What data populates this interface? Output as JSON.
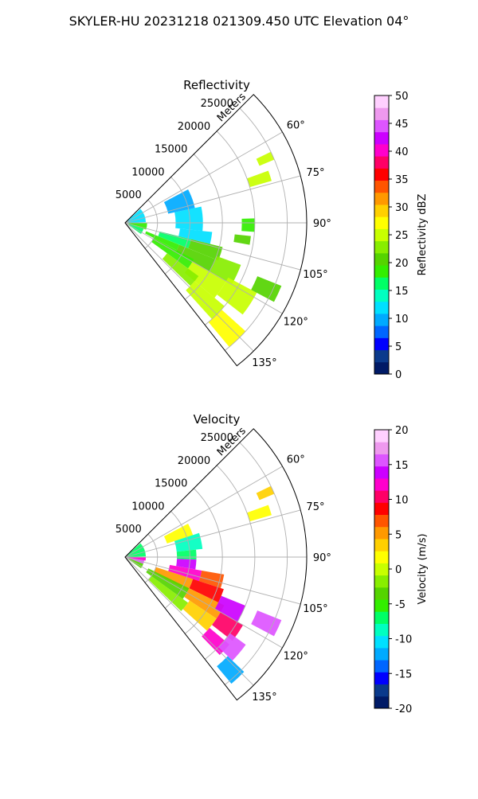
{
  "figure": {
    "title": "SKYLER-HU  20231218  021309.450 UTC Elevation 04°"
  },
  "panels": [
    {
      "title": "Reflectivity",
      "colorbar_label": "Reflectivity dBZ",
      "colorbar_ticks": [
        "0",
        "5",
        "10",
        "15",
        "20",
        "25",
        "30",
        "35",
        "40",
        "45",
        "50"
      ],
      "range_label": "Meters",
      "range_tick_labels": [
        "5000",
        "10000",
        "15000",
        "20000",
        "25000"
      ],
      "angle_tick_labels": [
        "60°",
        "75°",
        "90°",
        "105°",
        "120°",
        "135°"
      ]
    },
    {
      "title": "Velocity",
      "colorbar_label": "Velocity (m/s)",
      "colorbar_ticks": [
        "-20",
        "-15",
        "-10",
        "-5",
        "0",
        "5",
        "10",
        "15",
        "20"
      ],
      "range_label": "Meters",
      "range_tick_labels": [
        "5000",
        "10000",
        "15000",
        "20000",
        "25000"
      ],
      "angle_tick_labels": [
        "60°",
        "75°",
        "90°",
        "105°",
        "120°",
        "135°"
      ]
    }
  ],
  "chart_data": [
    {
      "type": "heatmap",
      "projection": "polar",
      "title": "Reflectivity",
      "theta_range_deg": [
        45,
        142
      ],
      "r_range": [
        0,
        28000
      ],
      "r_ticks": [
        5000,
        10000,
        15000,
        20000,
        25000
      ],
      "theta_ticks_deg": [
        60,
        75,
        90,
        105,
        120,
        135
      ],
      "grid": true,
      "colorbar": {
        "label": "Reflectivity dBZ",
        "range": [
          0,
          50
        ],
        "ticks": [
          0,
          5,
          10,
          15,
          20,
          25,
          30,
          35,
          40,
          45,
          50
        ],
        "colors": [
          "#001a66",
          "#0a3a8c",
          "#0000ff",
          "#0066ff",
          "#00aaff",
          "#00e0ff",
          "#00ffc0",
          "#00ff66",
          "#33ee00",
          "#55d400",
          "#88ee00",
          "#c8ff00",
          "#ffff00",
          "#ffd000",
          "#ff9900",
          "#ff5500",
          "#ff0000",
          "#ff0066",
          "#ff00cc",
          "#cc00ff",
          "#dd55ff",
          "#ee99ee",
          "#ffd0ff"
        ]
      },
      "cells": [
        {
          "theta": [
            48,
            88
          ],
          "r": [
            400,
            3200
          ],
          "value": 12
        },
        {
          "theta": [
            90,
            108
          ],
          "r": [
            400,
            3400
          ],
          "value": 18
        },
        {
          "theta": [
            108,
            125
          ],
          "r": [
            600,
            3000
          ],
          "value": 16
        },
        {
          "theta": [
            62,
            78
          ],
          "r": [
            6800,
            11000
          ],
          "value": 10
        },
        {
          "theta": [
            78,
            96
          ],
          "r": [
            7800,
            12000
          ],
          "value": 12
        },
        {
          "theta": [
            96,
            104
          ],
          "r": [
            8500,
            13500
          ],
          "value": 13
        },
        {
          "theta": [
            104,
            112
          ],
          "r": [
            5500,
            10500
          ],
          "value": 16
        },
        {
          "theta": [
            112,
            118
          ],
          "r": [
            3500,
            9000
          ],
          "value": 18
        },
        {
          "theta": [
            104,
            112
          ],
          "r": [
            10500,
            15500
          ],
          "value": 20
        },
        {
          "theta": [
            112,
            120
          ],
          "r": [
            9000,
            15000
          ],
          "value": 21
        },
        {
          "theta": [
            118,
            126
          ],
          "r": [
            5000,
            12000
          ],
          "value": 19
        },
        {
          "theta": [
            110,
            120
          ],
          "r": [
            15000,
            19000
          ],
          "value": 23
        },
        {
          "theta": [
            120,
            130
          ],
          "r": [
            12000,
            18000
          ],
          "value": 24
        },
        {
          "theta": [
            126,
            134
          ],
          "r": [
            8000,
            14000
          ],
          "value": 22
        },
        {
          "theta": [
            118,
            128
          ],
          "r": [
            18000,
            23000
          ],
          "value": 25
        },
        {
          "theta": [
            130,
            138
          ],
          "r": [
            14000,
            20000
          ],
          "value": 25
        },
        {
          "theta": [
            132,
            140
          ],
          "r": [
            20000,
            25000
          ],
          "value": 27
        },
        {
          "theta": [
            70,
            74
          ],
          "r": [
            20000,
            23500
          ],
          "value": 24
        },
        {
          "theta": [
            64,
            67
          ],
          "r": [
            22500,
            25000
          ],
          "value": 25
        },
        {
          "theta": [
            88,
            94
          ],
          "r": [
            18000,
            20000
          ],
          "value": 19
        },
        {
          "theta": [
            96,
            100
          ],
          "r": [
            17000,
            19500
          ],
          "value": 20
        },
        {
          "theta": [
            112,
            118
          ],
          "r": [
            22000,
            26000
          ],
          "value": 20
        }
      ]
    },
    {
      "type": "heatmap",
      "projection": "polar",
      "title": "Velocity",
      "theta_range_deg": [
        45,
        142
      ],
      "r_range": [
        0,
        28000
      ],
      "r_ticks": [
        5000,
        10000,
        15000,
        20000,
        25000
      ],
      "theta_ticks_deg": [
        60,
        75,
        90,
        105,
        120,
        135
      ],
      "grid": true,
      "colorbar": {
        "label": "Velocity (m/s)",
        "range": [
          -20,
          20
        ],
        "ticks": [
          -20,
          -15,
          -10,
          -5,
          0,
          5,
          10,
          15,
          20
        ],
        "colors": [
          "#001a66",
          "#0a3a8c",
          "#0000ff",
          "#0066ff",
          "#00aaff",
          "#00e0ff",
          "#00ffc0",
          "#00ff66",
          "#33ee00",
          "#55d400",
          "#88ee00",
          "#c8ff00",
          "#ffff00",
          "#ffd000",
          "#ff9900",
          "#ff5500",
          "#ff0000",
          "#ff0066",
          "#ff00cc",
          "#cc00ff",
          "#dd55ff",
          "#ee99ee",
          "#ffd0ff"
        ]
      },
      "cells": [
        {
          "theta": [
            48,
            88
          ],
          "r": [
            400,
            3200
          ],
          "value": -7
        },
        {
          "theta": [
            90,
            100
          ],
          "r": [
            400,
            3200
          ],
          "value": 12
        },
        {
          "theta": [
            100,
            110
          ],
          "r": [
            400,
            3000
          ],
          "value": 16
        },
        {
          "theta": [
            110,
            125
          ],
          "r": [
            600,
            3000
          ],
          "value": -3
        },
        {
          "theta": [
            62,
            72
          ],
          "r": [
            6800,
            11000
          ],
          "value": 1
        },
        {
          "theta": [
            72,
            84
          ],
          "r": [
            8000,
            12000
          ],
          "value": -8
        },
        {
          "theta": [
            84,
            92
          ],
          "r": [
            8000,
            11000
          ],
          "value": -7
        },
        {
          "theta": [
            92,
            100
          ],
          "r": [
            8000,
            11000
          ],
          "value": 14
        },
        {
          "theta": [
            100,
            108
          ],
          "r": [
            7000,
            12000
          ],
          "value": 12
        },
        {
          "theta": [
            108,
            118
          ],
          "r": [
            5000,
            11000
          ],
          "value": 5
        },
        {
          "theta": [
            116,
            126
          ],
          "r": [
            4000,
            11000
          ],
          "value": -3
        },
        {
          "theta": [
            126,
            134
          ],
          "r": [
            5000,
            12000
          ],
          "value": -1
        },
        {
          "theta": [
            100,
            108
          ],
          "r": [
            12000,
            15500
          ],
          "value": 7
        },
        {
          "theta": [
            108,
            116
          ],
          "r": [
            11000,
            16000
          ],
          "value": 9
        },
        {
          "theta": [
            116,
            124
          ],
          "r": [
            11000,
            17000
          ],
          "value": 6
        },
        {
          "theta": [
            124,
            132
          ],
          "r": [
            12000,
            17000
          ],
          "value": 3
        },
        {
          "theta": [
            112,
            120
          ],
          "r": [
            16000,
            20000
          ],
          "value": 14
        },
        {
          "theta": [
            120,
            128
          ],
          "r": [
            17000,
            21000
          ],
          "value": 11
        },
        {
          "theta": [
            130,
            136
          ],
          "r": [
            17000,
            21000
          ],
          "value": 12
        },
        {
          "theta": [
            126,
            134
          ],
          "r": [
            20000,
            23000
          ],
          "value": 15
        },
        {
          "theta": [
            134,
            140
          ],
          "r": [
            22000,
            25500
          ],
          "value": -12
        },
        {
          "theta": [
            70,
            74
          ],
          "r": [
            20000,
            23500
          ],
          "value": 2
        },
        {
          "theta": [
            64,
            67
          ],
          "r": [
            22500,
            25000
          ],
          "value": 3
        },
        {
          "theta": [
            112,
            118
          ],
          "r": [
            22000,
            26000
          ],
          "value": 15
        }
      ]
    }
  ]
}
